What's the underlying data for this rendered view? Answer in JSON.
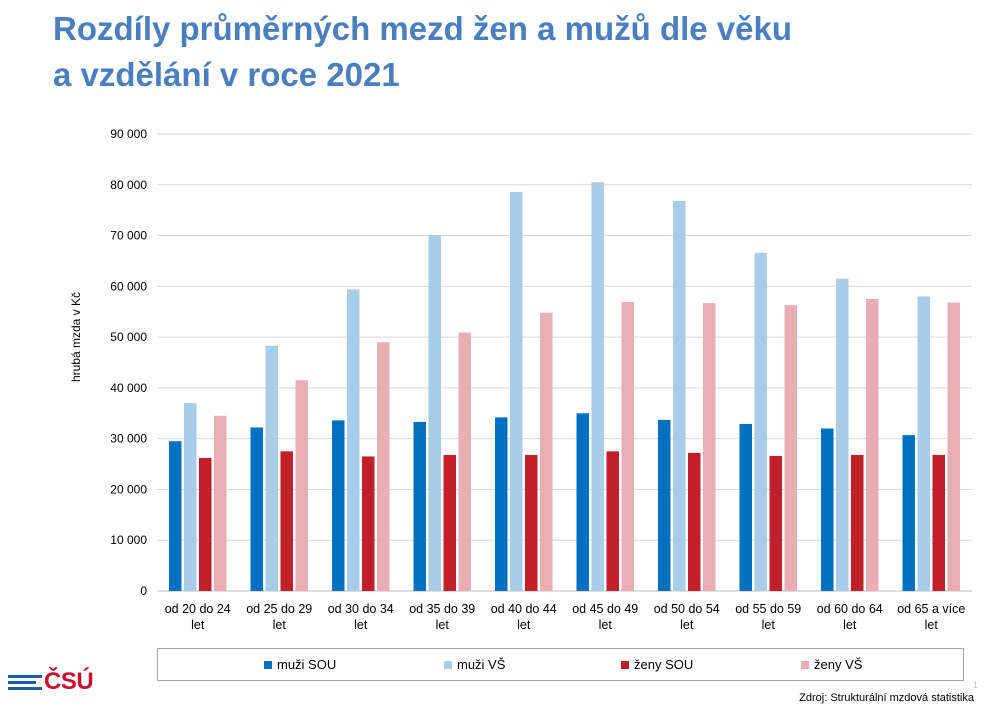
{
  "title": {
    "line1": "Rozdíly průměrných mezd žen a mužů dle věku",
    "line2": "a vzdělání v roce 2021"
  },
  "chart_data": {
    "type": "bar",
    "ylabel": "hrubá mzda v Kč",
    "xlabel": "",
    "ylim": [
      0,
      90000
    ],
    "yticks": [
      0,
      10000,
      20000,
      30000,
      40000,
      50000,
      60000,
      70000,
      80000,
      90000
    ],
    "ytick_labels": [
      "0",
      "10 000",
      "20 000",
      "30 000",
      "40 000",
      "50 000",
      "60 000",
      "70 000",
      "80 000",
      "90 000"
    ],
    "grid": true,
    "legend_position": "bottom",
    "categories": [
      [
        "od 20 do 24",
        "let"
      ],
      [
        "od 25 do 29",
        "let"
      ],
      [
        "od 30 do 34",
        "let"
      ],
      [
        "od 35 do 39",
        "let"
      ],
      [
        "od 40 do 44",
        "let"
      ],
      [
        "od 45 do 49",
        "let"
      ],
      [
        "od 50 do 54",
        "let"
      ],
      [
        "od 55 do 59",
        "let"
      ],
      [
        "od 60 do 64",
        "let"
      ],
      [
        "od 65 a více",
        "let"
      ]
    ],
    "series": [
      {
        "name": "muži SOU",
        "color": "#0070c0",
        "values": [
          29500,
          32200,
          33600,
          33300,
          34200,
          35000,
          33700,
          32900,
          32000,
          30700
        ]
      },
      {
        "name": "muži VŠ",
        "color": "#a8cde8",
        "values": [
          37000,
          48300,
          59400,
          70100,
          78600,
          80500,
          76800,
          66600,
          61500,
          58000
        ]
      },
      {
        "name": "ženy SOU",
        "color": "#c0202a",
        "values": [
          26200,
          27500,
          26500,
          26800,
          26800,
          27500,
          27200,
          26600,
          26800,
          26800
        ]
      },
      {
        "name": "ženy VŠ",
        "color": "#e8aeb4",
        "values": [
          34500,
          41500,
          49000,
          50900,
          54800,
          56900,
          56700,
          56300,
          57500,
          56800
        ]
      }
    ]
  },
  "logo": {
    "text": "ČSÚ"
  },
  "source": "Zdroj: Strukturální mzdová statistika",
  "page_number": "1"
}
